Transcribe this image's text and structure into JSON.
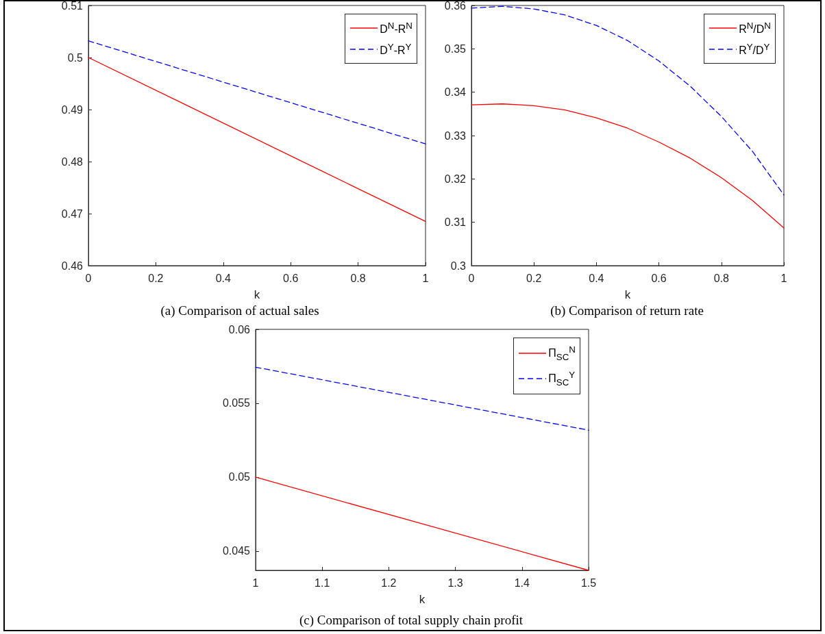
{
  "chart_data": [
    {
      "type": "line",
      "title": "(a) Comparison of actual sales",
      "xlabel": "k",
      "x": [
        0,
        1
      ],
      "xlim": [
        0,
        1
      ],
      "xticks": [
        0,
        0.2,
        0.4,
        0.6,
        0.8,
        1
      ],
      "ylim": [
        0.46,
        0.51
      ],
      "yticks": [
        0.46,
        0.47,
        0.48,
        0.49,
        0.5,
        0.51
      ],
      "grid": false,
      "legend": "top right",
      "marker": "none",
      "series": [
        {
          "name": "D$^{N}$-R$^{N}$",
          "color": "#ff0000",
          "line_style": "solid",
          "values": [
            0.5,
            0.4685
          ]
        },
        {
          "name": "D$^{Y}$-R$^{Y}$",
          "color": "#0000ff",
          "line_style": "dashed",
          "values": [
            0.5032,
            0.4834
          ]
        }
      ]
    },
    {
      "type": "line",
      "title": "(b) Comparison of return rate",
      "xlabel": "k",
      "x": [
        0,
        0.1,
        0.2,
        0.3,
        0.4,
        0.5,
        0.6,
        0.7,
        0.8,
        0.9,
        1
      ],
      "xlim": [
        0,
        1
      ],
      "xticks": [
        0,
        0.2,
        0.4,
        0.6,
        0.8,
        1
      ],
      "ylim": [
        0.3,
        0.36
      ],
      "yticks": [
        0.3,
        0.31,
        0.32,
        0.33,
        0.34,
        0.35,
        0.36
      ],
      "grid": false,
      "legend": "top right",
      "marker": "none",
      "series": [
        {
          "name": "R$^{N}$/D$^{N}$",
          "color": "#ff0000",
          "line_style": "solid",
          "values": [
            0.3371,
            0.3373,
            0.3369,
            0.3359,
            0.3341,
            0.3317,
            0.3285,
            0.3248,
            0.3203,
            0.315,
            0.3087
          ]
        },
        {
          "name": "R$^{Y}$/D$^{Y}$",
          "color": "#0000ff",
          "line_style": "dashed",
          "values": [
            0.3594,
            0.3598,
            0.3592,
            0.3578,
            0.3554,
            0.3519,
            0.3472,
            0.3414,
            0.3344,
            0.3263,
            0.3163
          ]
        }
      ]
    },
    {
      "type": "line",
      "title": "(c) Comparison of total supply chain profit",
      "xlabel": "k",
      "x": [
        1,
        1.5
      ],
      "xlim": [
        1,
        1.5
      ],
      "xticks": [
        1,
        1.1,
        1.2,
        1.3,
        1.4,
        1.5
      ],
      "ylim": [
        0.0437,
        0.06
      ],
      "yticks": [
        0.045,
        0.05,
        0.055,
        0.06
      ],
      "grid": false,
      "legend": "top right",
      "marker": "none",
      "series": [
        {
          "name": "Π$_{SC}$$^{N}$",
          "color": "#ff0000",
          "line_style": "solid",
          "values": [
            0.05,
            0.0437
          ]
        },
        {
          "name": "Π$_{SC}$$^{Y}$",
          "color": "#0000ff",
          "line_style": "dashed",
          "values": [
            0.05744,
            0.05318
          ]
        }
      ]
    }
  ]
}
